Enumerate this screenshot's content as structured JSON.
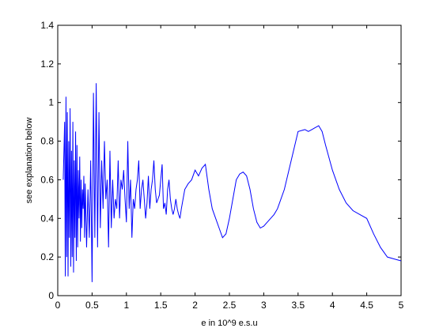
{
  "chart_data": {
    "type": "line",
    "title": "",
    "xlabel": "e in 10^9 e.s.u",
    "ylabel": "see explanation below",
    "xlim": [
      0,
      5
    ],
    "ylim": [
      0,
      1.4
    ],
    "grid": false,
    "xticks": [
      "0",
      "0.5",
      "1",
      "1.5",
      "2",
      "2.5",
      "3",
      "3.5",
      "4",
      "4.5",
      "5"
    ],
    "yticks": [
      "0",
      "0.2",
      "0.4",
      "0.6",
      "0.8",
      "1",
      "1.2",
      "1.4"
    ],
    "series_color": "#0000ff",
    "series": [
      {
        "x": [
          0.08,
          0.1,
          0.11,
          0.12,
          0.13,
          0.14,
          0.15,
          0.16,
          0.17,
          0.18,
          0.19,
          0.2,
          0.21,
          0.22,
          0.23,
          0.24,
          0.25,
          0.26,
          0.27,
          0.28,
          0.29,
          0.3,
          0.31,
          0.32,
          0.33,
          0.34,
          0.35,
          0.36,
          0.37,
          0.38,
          0.39,
          0.4,
          0.42,
          0.44,
          0.46,
          0.48,
          0.5,
          0.52,
          0.54,
          0.56,
          0.58,
          0.6,
          0.62,
          0.64,
          0.66,
          0.68,
          0.7,
          0.72,
          0.74,
          0.76,
          0.78,
          0.8,
          0.82,
          0.84,
          0.86,
          0.88,
          0.9,
          0.92,
          0.94,
          0.96,
          0.98,
          1.0,
          1.02,
          1.04,
          1.06,
          1.08,
          1.1,
          1.12,
          1.14,
          1.16,
          1.18,
          1.2,
          1.22,
          1.24,
          1.26,
          1.28,
          1.3,
          1.32,
          1.34,
          1.36,
          1.38,
          1.4,
          1.42,
          1.44,
          1.46,
          1.48,
          1.5,
          1.52,
          1.54,
          1.56,
          1.58,
          1.6,
          1.62,
          1.64,
          1.66,
          1.68,
          1.7,
          1.72,
          1.74,
          1.76,
          1.78,
          1.8,
          1.85,
          1.9,
          1.95,
          2.0,
          2.05,
          2.1,
          2.15,
          2.2,
          2.25,
          2.3,
          2.35,
          2.4,
          2.45,
          2.5,
          2.55,
          2.6,
          2.65,
          2.7,
          2.75,
          2.8,
          2.85,
          2.9,
          2.95,
          3.0,
          3.05,
          3.1,
          3.15,
          3.2,
          3.3,
          3.4,
          3.5,
          3.6,
          3.65,
          3.7,
          3.75,
          3.8,
          3.85,
          3.9,
          4.0,
          4.1,
          4.2,
          4.3,
          4.4,
          4.5,
          4.6,
          4.7,
          4.8,
          4.9,
          5.0
        ],
        "y": [
          0.6,
          0.9,
          0.1,
          1.03,
          0.2,
          0.95,
          0.1,
          0.8,
          0.3,
          0.97,
          0.15,
          0.75,
          0.2,
          0.9,
          0.12,
          0.7,
          0.3,
          0.85,
          0.18,
          0.78,
          0.25,
          0.65,
          0.4,
          0.72,
          0.28,
          0.6,
          0.35,
          0.55,
          0.45,
          0.62,
          0.3,
          0.58,
          0.25,
          0.55,
          0.3,
          0.7,
          0.07,
          1.05,
          0.3,
          1.1,
          0.25,
          0.95,
          0.35,
          0.7,
          0.45,
          0.8,
          0.5,
          0.6,
          0.25,
          0.75,
          0.35,
          0.6,
          0.4,
          0.5,
          0.45,
          0.7,
          0.4,
          0.6,
          0.55,
          0.65,
          0.5,
          0.38,
          0.8,
          0.45,
          0.6,
          0.3,
          0.5,
          0.45,
          0.55,
          0.6,
          0.7,
          0.45,
          0.55,
          0.6,
          0.5,
          0.4,
          0.48,
          0.62,
          0.45,
          0.55,
          0.6,
          0.7,
          0.55,
          0.48,
          0.5,
          0.52,
          0.6,
          0.68,
          0.45,
          0.48,
          0.42,
          0.55,
          0.6,
          0.5,
          0.45,
          0.42,
          0.45,
          0.5,
          0.45,
          0.42,
          0.4,
          0.45,
          0.55,
          0.58,
          0.6,
          0.65,
          0.62,
          0.66,
          0.68,
          0.55,
          0.45,
          0.4,
          0.35,
          0.3,
          0.32,
          0.4,
          0.5,
          0.6,
          0.63,
          0.64,
          0.62,
          0.55,
          0.45,
          0.38,
          0.35,
          0.36,
          0.38,
          0.4,
          0.42,
          0.45,
          0.55,
          0.7,
          0.85,
          0.86,
          0.85,
          0.86,
          0.87,
          0.88,
          0.85,
          0.78,
          0.65,
          0.55,
          0.48,
          0.44,
          0.42,
          0.4,
          0.32,
          0.25,
          0.2,
          0.19,
          0.18
        ]
      }
    ]
  }
}
